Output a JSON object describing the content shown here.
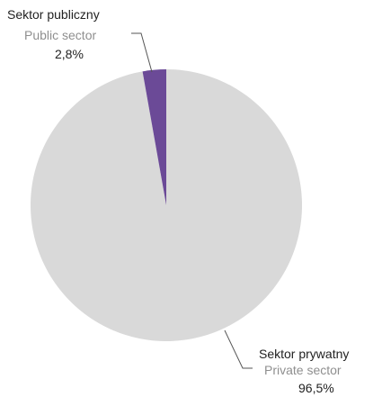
{
  "chart_data": {
    "type": "pie",
    "start_angle": "12 o'clock",
    "direction": "clockwise",
    "slices": [
      {
        "label_pl": "Sektor prywatny",
        "label_en": "Private sector",
        "value": 96.5,
        "value_label": "96,5%",
        "color": "#d9d9d9"
      },
      {
        "label_pl": "Sektor publiczny",
        "label_en": "Public sector",
        "value": 2.8,
        "value_label": "2,8%",
        "color": "#6b4a97"
      }
    ]
  }
}
